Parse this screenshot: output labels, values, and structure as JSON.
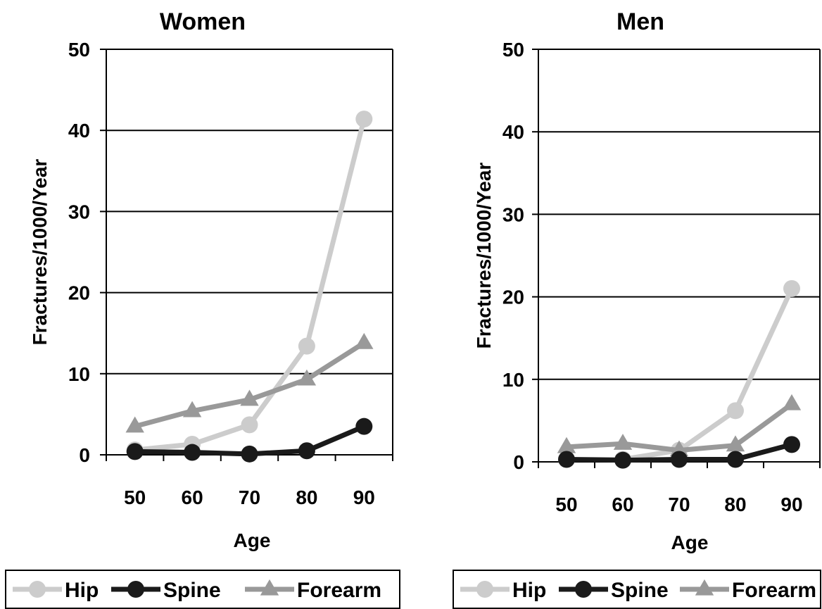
{
  "colors": {
    "hip": "#cccccc",
    "spine": "#1a1a1a",
    "forearm": "#999999",
    "axis": "#000000",
    "grid": "#000000",
    "background": "#ffffff"
  },
  "chart_data": [
    {
      "type": "line",
      "title": "Women",
      "xlabel": "Age",
      "ylabel": "Fractures/1000/Year",
      "x": [
        50,
        60,
        70,
        80,
        90
      ],
      "xticks": [
        "50",
        "60",
        "70",
        "80",
        "90"
      ],
      "ylim": [
        0,
        50
      ],
      "yticks": [
        "0",
        "10",
        "20",
        "30",
        "40",
        "50"
      ],
      "grid": "horizontal",
      "legend_position": "bottom",
      "series": [
        {
          "name": "Hip",
          "marker": "circle",
          "color": "#cccccc",
          "values": [
            0.6,
            1.3,
            3.7,
            13.4,
            41.4
          ]
        },
        {
          "name": "Spine",
          "marker": "circle",
          "color": "#1a1a1a",
          "values": [
            0.4,
            0.3,
            0.1,
            0.5,
            3.5
          ]
        },
        {
          "name": "Forearm",
          "marker": "triangle",
          "color": "#999999",
          "values": [
            3.5,
            5.4,
            6.8,
            9.3,
            13.8
          ]
        }
      ]
    },
    {
      "type": "line",
      "title": "Men",
      "xlabel": "Age",
      "ylabel": "Fractures/1000/Year",
      "x": [
        50,
        60,
        70,
        80,
        90
      ],
      "xticks": [
        "50",
        "60",
        "70",
        "80",
        "90"
      ],
      "ylim": [
        0,
        50
      ],
      "yticks": [
        "0",
        "10",
        "20",
        "30",
        "40",
        "50"
      ],
      "grid": "horizontal",
      "legend_position": "bottom",
      "series": [
        {
          "name": "Hip",
          "marker": "circle",
          "color": "#cccccc",
          "values": [
            0.3,
            0.3,
            1.4,
            6.2,
            21.0
          ]
        },
        {
          "name": "Spine",
          "marker": "circle",
          "color": "#1a1a1a",
          "values": [
            0.3,
            0.2,
            0.3,
            0.3,
            2.1
          ]
        },
        {
          "name": "Forearm",
          "marker": "triangle",
          "color": "#999999",
          "values": [
            1.8,
            2.2,
            1.4,
            2.0,
            7.0
          ]
        }
      ]
    }
  ]
}
